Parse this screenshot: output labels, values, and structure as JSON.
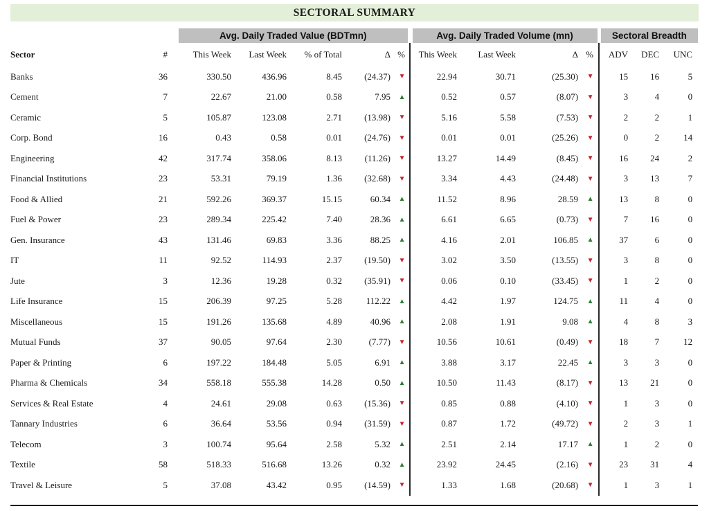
{
  "title": "SECTORAL SUMMARY",
  "group_headers": {
    "value": "Avg. Daily Traded Value (BDTmn)",
    "volume": "Avg. Daily Traded Volume (mn)",
    "breadth": "Sectoral Breadth"
  },
  "columns": {
    "sector": "Sector",
    "count": "#",
    "this_week": "This Week",
    "last_week": "Last Week",
    "pct_of_total": "% of Total",
    "delta": "Δ",
    "pct": "%",
    "adv": "ADV",
    "dec": "DEC",
    "unc": "UNC"
  },
  "icons": {
    "up_arrow": "▲",
    "down_arrow": "▼"
  },
  "colors": {
    "up_green": "#2e7d32",
    "down_red": "#c1272d",
    "title_bg": "#e4efda",
    "group_bg": "#bfbfbf"
  },
  "rows": [
    {
      "sector": "Banks",
      "count": "36",
      "val_tw": "330.50",
      "val_lw": "436.96",
      "val_pct": "8.45",
      "val_chg": "(24.37)",
      "val_dir": "down",
      "vol_tw": "22.94",
      "vol_lw": "30.71",
      "vol_chg": "(25.30)",
      "vol_dir": "down",
      "adv": "15",
      "dec": "16",
      "unc": "5"
    },
    {
      "sector": "Cement",
      "count": "7",
      "val_tw": "22.67",
      "val_lw": "21.00",
      "val_pct": "0.58",
      "val_chg": "7.95",
      "val_dir": "up",
      "vol_tw": "0.52",
      "vol_lw": "0.57",
      "vol_chg": "(8.07)",
      "vol_dir": "down",
      "adv": "3",
      "dec": "4",
      "unc": "0"
    },
    {
      "sector": "Ceramic",
      "count": "5",
      "val_tw": "105.87",
      "val_lw": "123.08",
      "val_pct": "2.71",
      "val_chg": "(13.98)",
      "val_dir": "down",
      "vol_tw": "5.16",
      "vol_lw": "5.58",
      "vol_chg": "(7.53)",
      "vol_dir": "down",
      "adv": "2",
      "dec": "2",
      "unc": "1"
    },
    {
      "sector": "Corp. Bond",
      "count": "16",
      "val_tw": "0.43",
      "val_lw": "0.58",
      "val_pct": "0.01",
      "val_chg": "(24.76)",
      "val_dir": "down",
      "vol_tw": "0.01",
      "vol_lw": "0.01",
      "vol_chg": "(25.26)",
      "vol_dir": "down",
      "adv": "0",
      "dec": "2",
      "unc": "14"
    },
    {
      "sector": "Engineering",
      "count": "42",
      "val_tw": "317.74",
      "val_lw": "358.06",
      "val_pct": "8.13",
      "val_chg": "(11.26)",
      "val_dir": "down",
      "vol_tw": "13.27",
      "vol_lw": "14.49",
      "vol_chg": "(8.45)",
      "vol_dir": "down",
      "adv": "16",
      "dec": "24",
      "unc": "2"
    },
    {
      "sector": "Financial Institutions",
      "count": "23",
      "val_tw": "53.31",
      "val_lw": "79.19",
      "val_pct": "1.36",
      "val_chg": "(32.68)",
      "val_dir": "down",
      "vol_tw": "3.34",
      "vol_lw": "4.43",
      "vol_chg": "(24.48)",
      "vol_dir": "down",
      "adv": "3",
      "dec": "13",
      "unc": "7"
    },
    {
      "sector": "Food & Allied",
      "count": "21",
      "val_tw": "592.26",
      "val_lw": "369.37",
      "val_pct": "15.15",
      "val_chg": "60.34",
      "val_dir": "up",
      "vol_tw": "11.52",
      "vol_lw": "8.96",
      "vol_chg": "28.59",
      "vol_dir": "up",
      "adv": "13",
      "dec": "8",
      "unc": "0"
    },
    {
      "sector": "Fuel & Power",
      "count": "23",
      "val_tw": "289.34",
      "val_lw": "225.42",
      "val_pct": "7.40",
      "val_chg": "28.36",
      "val_dir": "up",
      "vol_tw": "6.61",
      "vol_lw": "6.65",
      "vol_chg": "(0.73)",
      "vol_dir": "down",
      "adv": "7",
      "dec": "16",
      "unc": "0"
    },
    {
      "sector": "Gen. Insurance",
      "count": "43",
      "val_tw": "131.46",
      "val_lw": "69.83",
      "val_pct": "3.36",
      "val_chg": "88.25",
      "val_dir": "up",
      "vol_tw": "4.16",
      "vol_lw": "2.01",
      "vol_chg": "106.85",
      "vol_dir": "up",
      "adv": "37",
      "dec": "6",
      "unc": "0"
    },
    {
      "sector": "IT",
      "count": "11",
      "val_tw": "92.52",
      "val_lw": "114.93",
      "val_pct": "2.37",
      "val_chg": "(19.50)",
      "val_dir": "down",
      "vol_tw": "3.02",
      "vol_lw": "3.50",
      "vol_chg": "(13.55)",
      "vol_dir": "down",
      "adv": "3",
      "dec": "8",
      "unc": "0"
    },
    {
      "sector": "Jute",
      "count": "3",
      "val_tw": "12.36",
      "val_lw": "19.28",
      "val_pct": "0.32",
      "val_chg": "(35.91)",
      "val_dir": "down",
      "vol_tw": "0.06",
      "vol_lw": "0.10",
      "vol_chg": "(33.45)",
      "vol_dir": "down",
      "adv": "1",
      "dec": "2",
      "unc": "0"
    },
    {
      "sector": "Life Insurance",
      "count": "15",
      "val_tw": "206.39",
      "val_lw": "97.25",
      "val_pct": "5.28",
      "val_chg": "112.22",
      "val_dir": "up",
      "vol_tw": "4.42",
      "vol_lw": "1.97",
      "vol_chg": "124.75",
      "vol_dir": "up",
      "adv": "11",
      "dec": "4",
      "unc": "0"
    },
    {
      "sector": "Miscellaneous",
      "count": "15",
      "val_tw": "191.26",
      "val_lw": "135.68",
      "val_pct": "4.89",
      "val_chg": "40.96",
      "val_dir": "up",
      "vol_tw": "2.08",
      "vol_lw": "1.91",
      "vol_chg": "9.08",
      "vol_dir": "up",
      "adv": "4",
      "dec": "8",
      "unc": "3"
    },
    {
      "sector": "Mutual Funds",
      "count": "37",
      "val_tw": "90.05",
      "val_lw": "97.64",
      "val_pct": "2.30",
      "val_chg": "(7.77)",
      "val_dir": "down",
      "vol_tw": "10.56",
      "vol_lw": "10.61",
      "vol_chg": "(0.49)",
      "vol_dir": "down",
      "adv": "18",
      "dec": "7",
      "unc": "12"
    },
    {
      "sector": "Paper & Printing",
      "count": "6",
      "val_tw": "197.22",
      "val_lw": "184.48",
      "val_pct": "5.05",
      "val_chg": "6.91",
      "val_dir": "up",
      "vol_tw": "3.88",
      "vol_lw": "3.17",
      "vol_chg": "22.45",
      "vol_dir": "up",
      "adv": "3",
      "dec": "3",
      "unc": "0"
    },
    {
      "sector": "Pharma & Chemicals",
      "count": "34",
      "val_tw": "558.18",
      "val_lw": "555.38",
      "val_pct": "14.28",
      "val_chg": "0.50",
      "val_dir": "up",
      "vol_tw": "10.50",
      "vol_lw": "11.43",
      "vol_chg": "(8.17)",
      "vol_dir": "down",
      "adv": "13",
      "dec": "21",
      "unc": "0"
    },
    {
      "sector": "Services & Real Estate",
      "count": "4",
      "val_tw": "24.61",
      "val_lw": "29.08",
      "val_pct": "0.63",
      "val_chg": "(15.36)",
      "val_dir": "down",
      "vol_tw": "0.85",
      "vol_lw": "0.88",
      "vol_chg": "(4.10)",
      "vol_dir": "down",
      "adv": "1",
      "dec": "3",
      "unc": "0"
    },
    {
      "sector": "Tannary Industries",
      "count": "6",
      "val_tw": "36.64",
      "val_lw": "53.56",
      "val_pct": "0.94",
      "val_chg": "(31.59)",
      "val_dir": "down",
      "vol_tw": "0.87",
      "vol_lw": "1.72",
      "vol_chg": "(49.72)",
      "vol_dir": "down",
      "adv": "2",
      "dec": "3",
      "unc": "1"
    },
    {
      "sector": "Telecom",
      "count": "3",
      "val_tw": "100.74",
      "val_lw": "95.64",
      "val_pct": "2.58",
      "val_chg": "5.32",
      "val_dir": "up",
      "vol_tw": "2.51",
      "vol_lw": "2.14",
      "vol_chg": "17.17",
      "vol_dir": "up",
      "adv": "1",
      "dec": "2",
      "unc": "0"
    },
    {
      "sector": "Textile",
      "count": "58",
      "val_tw": "518.33",
      "val_lw": "516.68",
      "val_pct": "13.26",
      "val_chg": "0.32",
      "val_dir": "up",
      "vol_tw": "23.92",
      "vol_lw": "24.45",
      "vol_chg": "(2.16)",
      "vol_dir": "down",
      "adv": "23",
      "dec": "31",
      "unc": "4"
    },
    {
      "sector": "Travel & Leisure",
      "count": "5",
      "val_tw": "37.08",
      "val_lw": "43.42",
      "val_pct": "0.95",
      "val_chg": "(14.59)",
      "val_dir": "down",
      "vol_tw": "1.33",
      "vol_lw": "1.68",
      "vol_chg": "(20.68)",
      "vol_dir": "down",
      "adv": "1",
      "dec": "3",
      "unc": "1"
    }
  ]
}
